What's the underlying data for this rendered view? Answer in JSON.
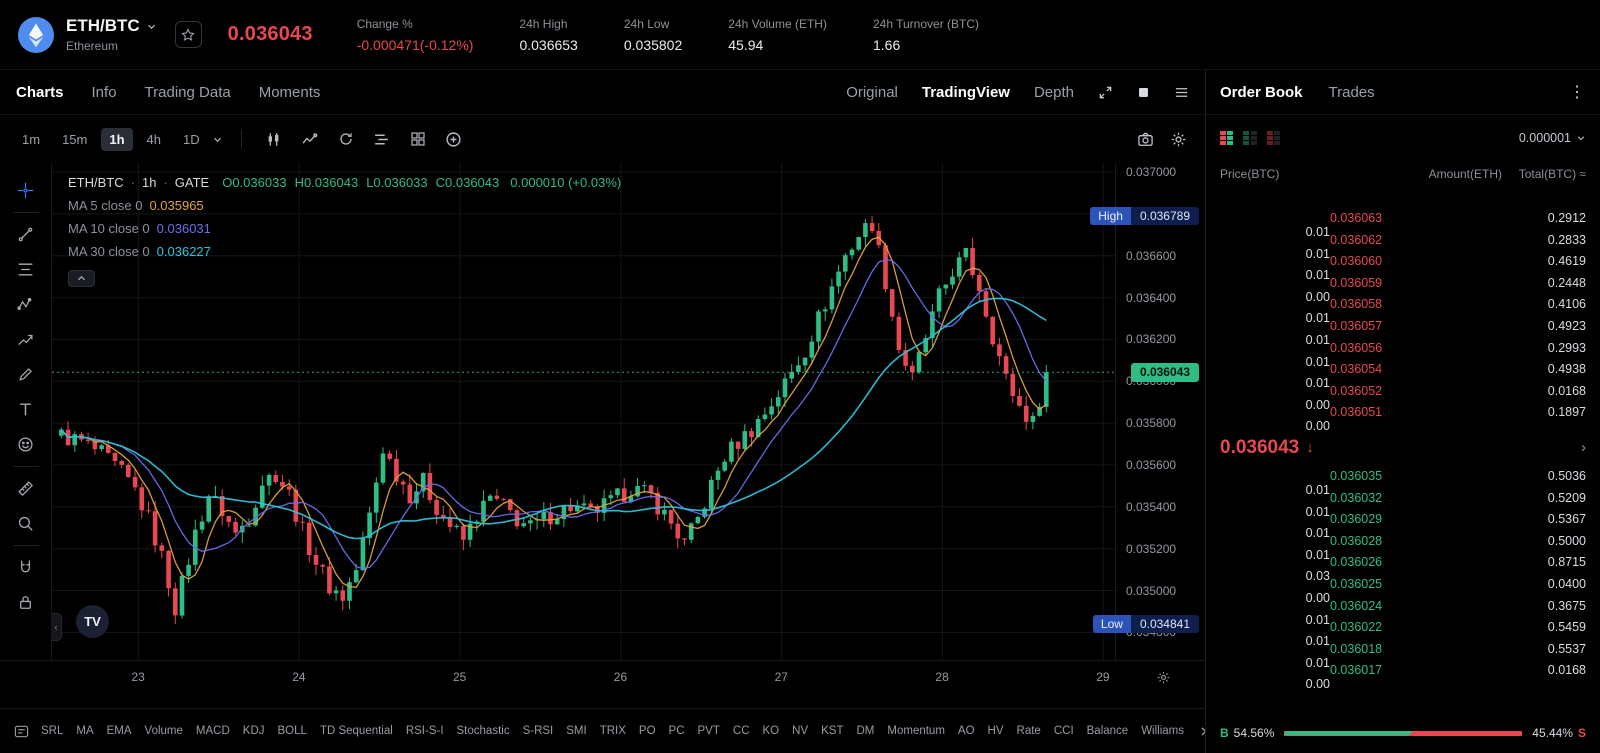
{
  "header": {
    "pair": "ETH/BTC",
    "coin_name": "Ethereum",
    "last_price": "0.036043",
    "stats": [
      {
        "label": "Change %",
        "value": "-0.000471(-0.12%)",
        "tone": "red"
      },
      {
        "label": "24h High",
        "value": "0.036653",
        "tone": ""
      },
      {
        "label": "24h Low",
        "value": "0.035802",
        "tone": ""
      },
      {
        "label": "24h Volume (ETH)",
        "value": "45.94",
        "tone": ""
      },
      {
        "label": "24h Turnover (BTC)",
        "value": "1.66",
        "tone": ""
      }
    ]
  },
  "nav": {
    "tabs": [
      "Charts",
      "Info",
      "Trading Data",
      "Moments"
    ],
    "active_tab": "Charts",
    "views": [
      "Original",
      "TradingView",
      "Depth"
    ],
    "active_view": "TradingView"
  },
  "chart_toolbar": {
    "timeframes": [
      "1m",
      "15m",
      "1h",
      "4h",
      "1D"
    ],
    "active_timeframe": "1h"
  },
  "legend": {
    "symbol": "ETH/BTC",
    "separator": "·",
    "interval": "1h",
    "exchange": "GATE",
    "ohlc": [
      {
        "k": "O",
        "v": "0.036033"
      },
      {
        "k": "H",
        "v": "0.036043"
      },
      {
        "k": "L",
        "v": "0.036033"
      },
      {
        "k": "C",
        "v": "0.036043"
      }
    ],
    "change": "0.000010 (+0.03%)",
    "ma_rows": [
      {
        "label": "MA 5 close 0",
        "value": "0.035965"
      },
      {
        "label": "MA 10 close 0",
        "value": "0.036031"
      },
      {
        "label": "MA 30 close 0",
        "value": "0.036227"
      }
    ]
  },
  "badges": {
    "high_label": "High",
    "high_value": "0.036789",
    "low_label": "Low",
    "low_value": "0.034841",
    "last_value": "0.036043"
  },
  "tv_logo_text": "TV",
  "indicator_strip": [
    "SRL",
    "MA",
    "EMA",
    "Volume",
    "MACD",
    "KDJ",
    "BOLL",
    "TD Sequential",
    "RSI-S-I",
    "Stochastic",
    "S-RSI",
    "SMI",
    "TRIX",
    "PO",
    "PC",
    "PVT",
    "CC",
    "KO",
    "NV",
    "KST",
    "DM",
    "Momentum",
    "AO",
    "HV",
    "Rate",
    "CCI",
    "Balance",
    "Williams"
  ],
  "orderbook": {
    "tabs": [
      "Order Book",
      "Trades"
    ],
    "active_tab": "Order Book",
    "precision": "0.000001",
    "columns": [
      "Price(BTC)",
      "Amount(ETH)",
      "Total(BTC) ≈"
    ],
    "asks": [
      {
        "price": "0.036063",
        "amount": "0.2912",
        "total": "0.01",
        "bar": 38
      },
      {
        "price": "0.036062",
        "amount": "0.2833",
        "total": "0.01",
        "bar": 27
      },
      {
        "price": "0.036060",
        "amount": "0.4619",
        "total": "0.01",
        "bar": 33
      },
      {
        "price": "0.036059",
        "amount": "0.2448",
        "total": "0.00",
        "bar": 20
      },
      {
        "price": "0.036058",
        "amount": "0.4106",
        "total": "0.01",
        "bar": 30
      },
      {
        "price": "0.036057",
        "amount": "0.4923",
        "total": "0.01",
        "bar": 24
      },
      {
        "price": "0.036056",
        "amount": "0.2993",
        "total": "0.01",
        "bar": 19
      },
      {
        "price": "0.036054",
        "amount": "0.4938",
        "total": "0.01",
        "bar": 16
      },
      {
        "price": "0.036052",
        "amount": "0.0168",
        "total": "0.00",
        "bar": 5
      },
      {
        "price": "0.036051",
        "amount": "0.1897",
        "total": "0.00",
        "bar": 9
      }
    ],
    "last": {
      "price": "0.036043",
      "direction": "down",
      "arrow": "↓"
    },
    "bids": [
      {
        "price": "0.036035",
        "amount": "0.5036",
        "total": "0.01",
        "bar": 6
      },
      {
        "price": "0.036032",
        "amount": "0.5209",
        "total": "0.01",
        "bar": 8
      },
      {
        "price": "0.036029",
        "amount": "0.5367",
        "total": "0.01",
        "bar": 9
      },
      {
        "price": "0.036028",
        "amount": "0.5000",
        "total": "0.01",
        "bar": 8
      },
      {
        "price": "0.036026",
        "amount": "0.8715",
        "total": "0.03",
        "bar": 15
      },
      {
        "price": "0.036025",
        "amount": "0.0400",
        "total": "0.00",
        "bar": 3
      },
      {
        "price": "0.036024",
        "amount": "0.3675",
        "total": "0.01",
        "bar": 11
      },
      {
        "price": "0.036022",
        "amount": "0.5459",
        "total": "0.01",
        "bar": 10
      },
      {
        "price": "0.036018",
        "amount": "0.5537",
        "total": "0.01",
        "bar": 11
      },
      {
        "price": "0.036017",
        "amount": "0.0168",
        "total": "0.00",
        "bar": 3
      }
    ],
    "ratio": {
      "buy_label": "B",
      "buy_pct": "54.56%",
      "sell_pct": "45.44%",
      "sell_label": "S",
      "buy_ratio": 54.56
    }
  },
  "chart_data": {
    "type": "candlestick",
    "title": "ETH/BTC · 1h · GATE",
    "y_ticks": [
      "0.037000",
      "0.036800",
      "0.036600",
      "0.036400",
      "0.036200",
      "0.036000",
      "0.035800",
      "0.035600",
      "0.035400",
      "0.035200",
      "0.035000",
      "0.034800"
    ],
    "x_ticks": [
      "23",
      "24",
      "25",
      "26",
      "27",
      "28",
      "29"
    ],
    "y_max": 0.037043,
    "y_min": 0.034668,
    "last_price": 0.036043,
    "high": {
      "value": 0.036789,
      "index": 121
    },
    "low": {
      "value": 0.034841,
      "index": 17
    },
    "candle_count": 148,
    "candles_per_day": 24,
    "first_day_boundary_index": 12,
    "price_path": [
      [
        0,
        0.03574
      ],
      [
        3,
        0.03571
      ],
      [
        6,
        0.03565
      ],
      [
        9,
        0.03556
      ],
      [
        11,
        0.03548
      ],
      [
        13,
        0.03534
      ],
      [
        15,
        0.03516
      ],
      [
        17,
        0.03492
      ],
      [
        18,
        0.03503
      ],
      [
        20,
        0.03527
      ],
      [
        22,
        0.03546
      ],
      [
        24,
        0.03538
      ],
      [
        26,
        0.03527
      ],
      [
        28,
        0.03535
      ],
      [
        30,
        0.03552
      ],
      [
        32,
        0.03556
      ],
      [
        34,
        0.03546
      ],
      [
        36,
        0.03528
      ],
      [
        38,
        0.03514
      ],
      [
        40,
        0.03502
      ],
      [
        42,
        0.03497
      ],
      [
        44,
        0.0351
      ],
      [
        46,
        0.03536
      ],
      [
        48,
        0.03568
      ],
      [
        50,
        0.03556
      ],
      [
        52,
        0.03546
      ],
      [
        54,
        0.03552
      ],
      [
        56,
        0.0354
      ],
      [
        58,
        0.03531
      ],
      [
        60,
        0.03524
      ],
      [
        62,
        0.03536
      ],
      [
        64,
        0.03544
      ],
      [
        66,
        0.0354
      ],
      [
        68,
        0.03534
      ],
      [
        70,
        0.0353
      ],
      [
        73,
        0.03536
      ],
      [
        76,
        0.0354
      ],
      [
        79,
        0.03537
      ],
      [
        82,
        0.03542
      ],
      [
        85,
        0.03549
      ],
      [
        88,
        0.03545
      ],
      [
        91,
        0.03532
      ],
      [
        93,
        0.03522
      ],
      [
        95,
        0.03534
      ],
      [
        97,
        0.0355
      ],
      [
        99,
        0.03564
      ],
      [
        101,
        0.03571
      ],
      [
        103,
        0.03577
      ],
      [
        105,
        0.03585
      ],
      [
        107,
        0.03594
      ],
      [
        109,
        0.03604
      ],
      [
        111,
        0.03615
      ],
      [
        113,
        0.0363
      ],
      [
        115,
        0.03645
      ],
      [
        117,
        0.0366
      ],
      [
        119,
        0.0367
      ],
      [
        121,
        0.03676
      ],
      [
        123,
        0.03648
      ],
      [
        125,
        0.03616
      ],
      [
        127,
        0.03601
      ],
      [
        129,
        0.03621
      ],
      [
        131,
        0.0364
      ],
      [
        133,
        0.03653
      ],
      [
        135,
        0.0366
      ],
      [
        137,
        0.03645
      ],
      [
        139,
        0.03622
      ],
      [
        141,
        0.03601
      ],
      [
        143,
        0.03588
      ],
      [
        145,
        0.0358
      ],
      [
        147,
        0.036043
      ]
    ],
    "ma_periods": [
      5,
      10,
      30
    ],
    "colors": {
      "up": "#2ebd85",
      "down": "#e8484f",
      "ma5": "#e2a43b",
      "ma10": "#6a6ff0",
      "ma30": "#2bc4dc",
      "last_line": "#2ebd85"
    }
  }
}
